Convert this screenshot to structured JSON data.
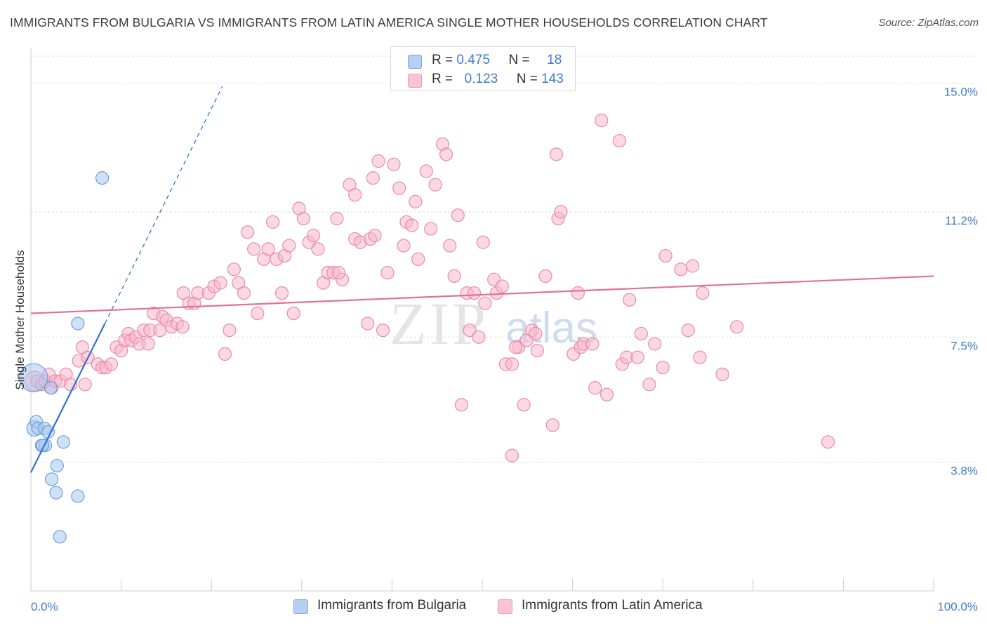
{
  "header": {
    "title": "IMMIGRANTS FROM BULGARIA VS IMMIGRANTS FROM LATIN AMERICA SINGLE MOTHER HOUSEHOLDS CORRELATION CHART",
    "source": "Source: ZipAtlas.com"
  },
  "watermark": {
    "zip": "ZIP",
    "atlas": "atlas"
  },
  "colors": {
    "blue_fill": "#aac8f0",
    "blue_stroke": "#6f9fdc",
    "blue_line": "#2f72d0",
    "pink_fill": "#f7b8cc",
    "pink_stroke": "#e98aa8",
    "pink_line": "#e4709a",
    "axis_label": "#3f7bd1",
    "grid": "#dddddd"
  },
  "legend": {
    "rows": [
      {
        "r_label": "R =",
        "r_value": "0.475",
        "n_label": "N =",
        "n_value": "18"
      },
      {
        "r_label": "R =",
        "r_value": "0.123",
        "n_label": "N =",
        "n_value": "143"
      }
    ]
  },
  "bottom_legend": {
    "series1": "Immigrants from Bulgaria",
    "series2": "Immigrants from Latin America"
  },
  "chart_data": {
    "type": "scatter",
    "title": "IMMIGRANTS FROM BULGARIA VS IMMIGRANTS FROM LATIN AMERICA SINGLE MOTHER HOUSEHOLDS CORRELATION CHART",
    "xlabel": "",
    "ylabel": "Single Mother Households",
    "xlim": [
      0,
      100
    ],
    "ylim": [
      0,
      15.8
    ],
    "x_tick_labels": [
      "0.0%",
      "100.0%"
    ],
    "y_ticks": [
      3.8,
      7.5,
      11.2,
      15.0
    ],
    "y_tick_labels": [
      "3.8%",
      "7.5%",
      "11.2%",
      "15.0%"
    ],
    "grid": true,
    "series": [
      {
        "name": "Immigrants from Bulgaria",
        "r": 0.475,
        "n": 18,
        "trend": {
          "x0": 0,
          "y0": 3.5,
          "x1": 8.2,
          "y1": 7.9,
          "dashed_to_x": 21.2,
          "dashed_to_y": 14.9
        },
        "points": [
          [
            0.3,
            6.3,
            20
          ],
          [
            0.4,
            4.8,
            11
          ],
          [
            0.6,
            5.0,
            9
          ],
          [
            0.8,
            4.8,
            9
          ],
          [
            1.2,
            4.3,
            9
          ],
          [
            1.5,
            4.8,
            9
          ],
          [
            1.6,
            4.3,
            9
          ],
          [
            1.9,
            4.7,
            9
          ],
          [
            2.2,
            6.0,
            9
          ],
          [
            2.3,
            3.3,
            9
          ],
          [
            2.8,
            2.9,
            9
          ],
          [
            2.9,
            3.7,
            9
          ],
          [
            3.6,
            4.4,
            9
          ],
          [
            3.2,
            1.6,
            9
          ],
          [
            5.2,
            2.8,
            9
          ],
          [
            5.2,
            7.9,
            9
          ],
          [
            7.9,
            12.2,
            9
          ],
          [
            1.3,
            4.3,
            9
          ]
        ]
      },
      {
        "name": "Immigrants from Latin America",
        "r": 0.123,
        "n": 143,
        "trend": {
          "x0": 0,
          "y0": 8.2,
          "x1": 100,
          "y1": 9.3
        },
        "points": [
          [
            0.4,
            6.2,
            14
          ],
          [
            0.7,
            6.2,
            9
          ],
          [
            1.2,
            6.1,
            9
          ],
          [
            1.6,
            6.2,
            9
          ],
          [
            2.0,
            6.4,
            9
          ],
          [
            2.3,
            6.0,
            9
          ],
          [
            2.7,
            6.2,
            9
          ],
          [
            3.3,
            6.2,
            9
          ],
          [
            3.9,
            6.4,
            9
          ],
          [
            4.4,
            6.1,
            9
          ],
          [
            5.3,
            6.8,
            9
          ],
          [
            5.7,
            7.2,
            9
          ],
          [
            6.3,
            6.9,
            9
          ],
          [
            6.0,
            6.1,
            9
          ],
          [
            7.4,
            6.7,
            9
          ],
          [
            7.9,
            6.6,
            9
          ],
          [
            8.3,
            6.6,
            9
          ],
          [
            8.9,
            6.7,
            9
          ],
          [
            9.5,
            7.2,
            9
          ],
          [
            10.0,
            7.1,
            9
          ],
          [
            10.4,
            7.4,
            9
          ],
          [
            10.8,
            7.6,
            9
          ],
          [
            11.1,
            7.4,
            9
          ],
          [
            11.6,
            7.5,
            9
          ],
          [
            12.0,
            7.3,
            9
          ],
          [
            12.5,
            7.7,
            9
          ],
          [
            13.0,
            7.3,
            9
          ],
          [
            13.2,
            7.7,
            9
          ],
          [
            13.6,
            8.2,
            9
          ],
          [
            14.3,
            7.7,
            9
          ],
          [
            14.6,
            8.1,
            9
          ],
          [
            15.0,
            8.0,
            9
          ],
          [
            15.6,
            7.8,
            9
          ],
          [
            16.2,
            7.9,
            9
          ],
          [
            16.8,
            7.8,
            9
          ],
          [
            16.9,
            8.8,
            9
          ],
          [
            17.5,
            8.5,
            9
          ],
          [
            18.1,
            8.5,
            9
          ],
          [
            18.5,
            8.8,
            9
          ],
          [
            19.7,
            8.8,
            9
          ],
          [
            20.3,
            9.0,
            9
          ],
          [
            21.0,
            9.1,
            9
          ],
          [
            21.5,
            7.0,
            9
          ],
          [
            22.0,
            7.7,
            9
          ],
          [
            22.5,
            9.5,
            9
          ],
          [
            23.0,
            9.1,
            9
          ],
          [
            23.6,
            8.8,
            9
          ],
          [
            24.0,
            10.6,
            9
          ],
          [
            24.7,
            10.1,
            9
          ],
          [
            25.1,
            8.2,
            9
          ],
          [
            25.8,
            9.8,
            9
          ],
          [
            26.3,
            10.1,
            9
          ],
          [
            26.8,
            10.9,
            9
          ],
          [
            27.2,
            9.8,
            9
          ],
          [
            27.8,
            8.8,
            9
          ],
          [
            28.1,
            9.9,
            9
          ],
          [
            28.6,
            10.2,
            9
          ],
          [
            29.1,
            8.2,
            9
          ],
          [
            29.7,
            11.3,
            9
          ],
          [
            30.2,
            11.0,
            9
          ],
          [
            30.8,
            10.3,
            9
          ],
          [
            31.3,
            10.5,
            9
          ],
          [
            31.8,
            10.1,
            9
          ],
          [
            32.4,
            9.1,
            9
          ],
          [
            32.9,
            9.4,
            9
          ],
          [
            33.5,
            9.4,
            9
          ],
          [
            33.9,
            11.0,
            9
          ],
          [
            34.5,
            9.2,
            9
          ],
          [
            34.1,
            9.4,
            9
          ],
          [
            35.3,
            12.0,
            9
          ],
          [
            35.9,
            11.7,
            9
          ],
          [
            35.9,
            10.4,
            9
          ],
          [
            36.5,
            10.3,
            9
          ],
          [
            37.3,
            7.9,
            9
          ],
          [
            37.6,
            10.4,
            9
          ],
          [
            37.9,
            12.2,
            9
          ],
          [
            38.5,
            12.7,
            9
          ],
          [
            38.1,
            10.5,
            9
          ],
          [
            39.0,
            7.7,
            9
          ],
          [
            39.5,
            9.4,
            9
          ],
          [
            40.2,
            12.6,
            9
          ],
          [
            40.8,
            11.9,
            9
          ],
          [
            41.3,
            10.2,
            9
          ],
          [
            41.6,
            10.9,
            9
          ],
          [
            42.2,
            10.8,
            9
          ],
          [
            42.6,
            11.5,
            9
          ],
          [
            42.9,
            9.8,
            9
          ],
          [
            43.8,
            12.4,
            9
          ],
          [
            44.3,
            10.7,
            9
          ],
          [
            44.8,
            12.0,
            9
          ],
          [
            45.6,
            13.2,
            9
          ],
          [
            46.0,
            12.9,
            9
          ],
          [
            46.4,
            10.2,
            9
          ],
          [
            46.9,
            9.3,
            9
          ],
          [
            47.3,
            11.1,
            9
          ],
          [
            47.7,
            5.5,
            9
          ],
          [
            48.3,
            8.8,
            9
          ],
          [
            48.6,
            7.7,
            9
          ],
          [
            49.1,
            8.8,
            9
          ],
          [
            49.6,
            7.5,
            9
          ],
          [
            50.1,
            10.3,
            9
          ],
          [
            50.3,
            8.5,
            9
          ],
          [
            51.3,
            9.2,
            9
          ],
          [
            51.6,
            8.8,
            9
          ],
          [
            52.2,
            9.0,
            9
          ],
          [
            52.6,
            6.7,
            9
          ],
          [
            53.3,
            6.7,
            9
          ],
          [
            53.3,
            4.0,
            9
          ],
          [
            54.0,
            7.2,
            9
          ],
          [
            54.6,
            5.5,
            9
          ],
          [
            54.9,
            7.4,
            9
          ],
          [
            55.5,
            7.7,
            9
          ],
          [
            55.9,
            7.6,
            9
          ],
          [
            56.1,
            7.1,
            9
          ],
          [
            57.0,
            9.3,
            9
          ],
          [
            57.8,
            4.9,
            9
          ],
          [
            58.2,
            12.9,
            9
          ],
          [
            58.4,
            11.0,
            9
          ],
          [
            58.7,
            11.2,
            9
          ],
          [
            60.1,
            7.0,
            9
          ],
          [
            60.6,
            8.8,
            9
          ],
          [
            60.9,
            7.2,
            9
          ],
          [
            61.2,
            7.3,
            9
          ],
          [
            62.2,
            7.3,
            9
          ],
          [
            62.5,
            6.0,
            9
          ],
          [
            63.2,
            13.9,
            9
          ],
          [
            63.8,
            5.8,
            9
          ],
          [
            65.2,
            13.3,
            9
          ],
          [
            65.5,
            6.7,
            9
          ],
          [
            66.0,
            6.9,
            9
          ],
          [
            66.3,
            8.6,
            9
          ],
          [
            67.2,
            6.9,
            9
          ],
          [
            67.6,
            7.6,
            9
          ],
          [
            68.5,
            6.1,
            9
          ],
          [
            69.1,
            7.3,
            9
          ],
          [
            70.0,
            6.6,
            9
          ],
          [
            70.3,
            9.9,
            9
          ],
          [
            72.0,
            9.5,
            9
          ],
          [
            72.8,
            7.7,
            9
          ],
          [
            73.3,
            9.6,
            9
          ],
          [
            74.1,
            6.9,
            9
          ],
          [
            74.4,
            8.8,
            9
          ],
          [
            76.6,
            6.4,
            9
          ],
          [
            78.2,
            7.8,
            9
          ],
          [
            88.3,
            4.4,
            9
          ],
          [
            53.7,
            7.2,
            9
          ]
        ]
      }
    ]
  }
}
